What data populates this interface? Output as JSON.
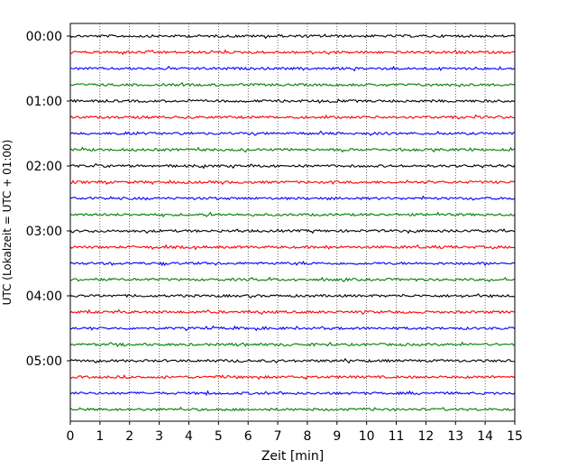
{
  "chart_data": {
    "type": "line",
    "title": "",
    "xlabel": "Zeit  [min]",
    "ylabel": "UTC (Lokalzeit = UTC + 01:00)",
    "xlim": [
      0,
      15
    ],
    "x_ticks": [
      "0",
      "1",
      "2",
      "3",
      "4",
      "5",
      "6",
      "7",
      "8",
      "9",
      "10",
      "11",
      "12",
      "13",
      "14",
      "15"
    ],
    "y_tick_labels": [
      "00:00",
      "01:00",
      "02:00",
      "03:00",
      "04:00",
      "05:00"
    ],
    "trace_interval_min": 15,
    "trace_count": 24,
    "trace_colors": [
      "#000000",
      "#ff0000",
      "#0000ff",
      "#007f00"
    ],
    "grid": "vertical dotted",
    "legend": "none"
  }
}
